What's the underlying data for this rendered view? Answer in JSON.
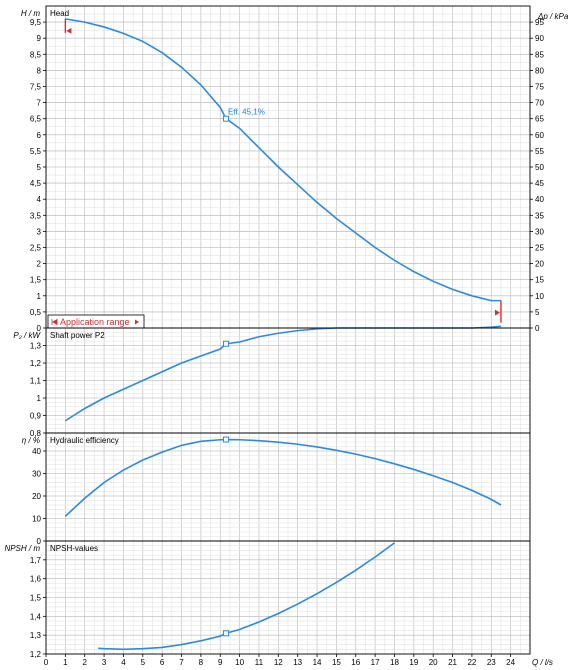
{
  "chart_data": [
    {
      "type": "line",
      "title": "Head",
      "ylabel": "H / m",
      "y2label": "Δp / kPa",
      "ylim": [
        0,
        10
      ],
      "y2lim": [
        0,
        100
      ],
      "xlim": [
        0,
        25
      ],
      "yticks": [
        "0",
        "0,5",
        "1",
        "1,5",
        "2",
        "2,5",
        "3",
        "3,5",
        "4",
        "4,5",
        "5",
        "5,5",
        "6",
        "6,5",
        "7",
        "7,5",
        "8",
        "8,5",
        "9",
        "9,5"
      ],
      "y2ticks": [
        "0",
        "5",
        "10",
        "15",
        "20",
        "25",
        "30",
        "35",
        "40",
        "45",
        "50",
        "55",
        "60",
        "65",
        "70",
        "75",
        "80",
        "85",
        "90",
        "95"
      ],
      "series": [
        {
          "x": [
            1.0,
            2,
            3,
            4,
            5,
            6,
            7,
            8,
            9,
            9.3,
            10,
            11,
            12,
            13,
            14,
            15,
            16,
            17,
            18,
            19,
            20,
            21,
            22,
            23,
            23.5
          ],
          "values": [
            9.6,
            9.5,
            9.35,
            9.15,
            8.9,
            8.55,
            8.1,
            7.55,
            6.85,
            6.5,
            6.2,
            5.6,
            5.0,
            4.45,
            3.9,
            3.4,
            2.95,
            2.5,
            2.1,
            1.75,
            1.45,
            1.2,
            1.0,
            0.85,
            0.85
          ]
        }
      ],
      "annotation": {
        "label": "Eff. 45,1%",
        "x": 9.3,
        "y": 6.5
      },
      "application_range": {
        "label": "Application range",
        "x_start": 1.0,
        "x_end": 23.5
      },
      "grid": true
    },
    {
      "type": "line",
      "title": "Shaft power P2",
      "ylabel": "P₂ / kW",
      "ylim": [
        0.8,
        1.4
      ],
      "yticks": [
        "0,8",
        "0,9",
        "1",
        "1,1",
        "1,2",
        "1,3"
      ],
      "series": [
        {
          "x": [
            1.0,
            2,
            3,
            4,
            5,
            6,
            7,
            8,
            9,
            9.3,
            10,
            11,
            12,
            13,
            14,
            15,
            16,
            17,
            18,
            19,
            20,
            21,
            22,
            23,
            23.5
          ],
          "values": [
            0.87,
            0.94,
            1.0,
            1.05,
            1.1,
            1.15,
            1.2,
            1.24,
            1.28,
            1.31,
            1.32,
            1.35,
            1.37,
            1.385,
            1.395,
            1.4,
            1.4,
            1.4,
            1.4,
            1.4,
            1.4,
            1.4,
            1.4,
            1.405,
            1.41
          ]
        }
      ],
      "marker": {
        "x": 9.3,
        "y": 1.31
      },
      "grid": true
    },
    {
      "type": "line",
      "title": "Hydraulic efficiency",
      "ylabel": "η / %",
      "ylim": [
        0,
        48
      ],
      "yticks": [
        "0",
        "10",
        "20",
        "30",
        "40"
      ],
      "series": [
        {
          "x": [
            1.0,
            2,
            3,
            4,
            5,
            6,
            7,
            8,
            9,
            9.3,
            10,
            11,
            12,
            13,
            14,
            15,
            16,
            17,
            18,
            19,
            20,
            21,
            22,
            23,
            23.5
          ],
          "values": [
            11,
            19,
            26,
            31.5,
            36,
            39.5,
            42.5,
            44.3,
            45,
            45.1,
            45,
            44.6,
            43.9,
            43,
            41.8,
            40.3,
            38.6,
            36.6,
            34.3,
            31.8,
            29,
            26,
            22.5,
            18.5,
            16
          ]
        }
      ],
      "marker": {
        "x": 9.3,
        "y": 45.1
      },
      "grid": true
    },
    {
      "type": "line",
      "title": "NPSH-values",
      "ylabel": "NPSH / m",
      "xlabel": "Q / l/s",
      "ylim": [
        1.2,
        1.8
      ],
      "xticks": [
        "0",
        "1",
        "2",
        "3",
        "4",
        "5",
        "6",
        "7",
        "8",
        "9",
        "10",
        "11",
        "12",
        "13",
        "14",
        "15",
        "16",
        "17",
        "18",
        "19",
        "20",
        "21",
        "22",
        "23",
        "24"
      ],
      "yticks": [
        "1,2",
        "1,3",
        "1,4",
        "1,5",
        "1,6",
        "1,7"
      ],
      "series": [
        {
          "x": [
            2.7,
            3,
            4,
            5,
            6,
            7,
            8,
            9,
            9.3,
            10,
            11,
            12,
            13,
            14,
            15,
            16,
            17,
            18
          ],
          "values": [
            1.23,
            1.228,
            1.225,
            1.228,
            1.235,
            1.25,
            1.27,
            1.295,
            1.31,
            1.33,
            1.37,
            1.415,
            1.465,
            1.52,
            1.58,
            1.645,
            1.715,
            1.79
          ]
        }
      ],
      "marker": {
        "x": 9.3,
        "y": 1.31
      },
      "grid": true
    }
  ]
}
